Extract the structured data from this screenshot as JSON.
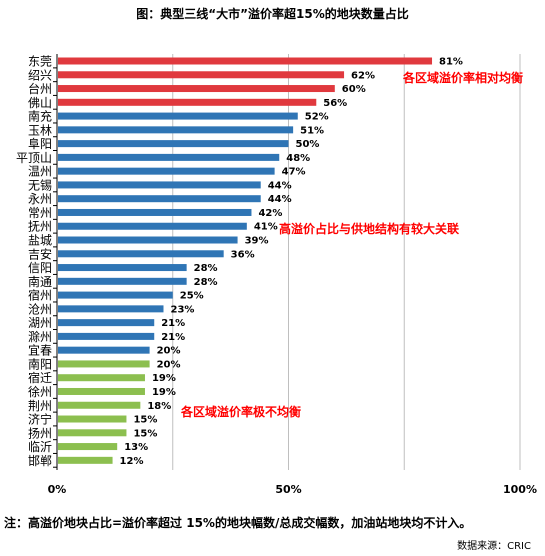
{
  "chart_data": {
    "type": "bar",
    "orientation": "horizontal",
    "title": "图：典型三线“大市”溢价率超15%的地块数量占比",
    "categories": [
      "东莞",
      "绍兴",
      "台州",
      "佛山",
      "南充",
      "玉林",
      "阜阳",
      "平顶山",
      "温州",
      "无锡",
      "永州",
      "常州",
      "抚州",
      "盐城",
      "吉安",
      "信阳",
      "南通",
      "宿州",
      "沧州",
      "湖州",
      "滁州",
      "宜春",
      "南阳",
      "宿迁",
      "徐州",
      "荆州",
      "济宁",
      "扬州",
      "临沂",
      "邯郸"
    ],
    "values": [
      81,
      62,
      60,
      56,
      52,
      51,
      50,
      48,
      47,
      44,
      44,
      42,
      41,
      39,
      36,
      28,
      28,
      25,
      23,
      21,
      21,
      20,
      20,
      19,
      19,
      18,
      15,
      15,
      13,
      12
    ],
    "value_labels": [
      "81%",
      "62%",
      "60%",
      "56%",
      "52%",
      "51%",
      "50%",
      "48%",
      "47%",
      "44%",
      "44%",
      "42%",
      "41%",
      "39%",
      "36%",
      "28%",
      "28%",
      "25%",
      "23%",
      "21%",
      "21%",
      "20%",
      "20%",
      "19%",
      "19%",
      "18%",
      "15%",
      "15%",
      "13%",
      "12%"
    ],
    "group": [
      "red",
      "red",
      "red",
      "red",
      "blue",
      "blue",
      "blue",
      "blue",
      "blue",
      "blue",
      "blue",
      "blue",
      "blue",
      "blue",
      "blue",
      "blue",
      "blue",
      "blue",
      "blue",
      "blue",
      "blue",
      "blue",
      "green",
      "green",
      "green",
      "green",
      "green",
      "green",
      "green",
      "green"
    ],
    "colors": {
      "red": "#e0393e",
      "blue": "#2f75b5",
      "green": "#8cbf4f",
      "annotation": "#ff0000",
      "grid": "#bfbfbf"
    },
    "xlim": [
      0,
      100
    ],
    "x_ticks": [
      0,
      50,
      100
    ],
    "x_tick_labels": [
      "0%",
      "50%",
      "100%"
    ],
    "grid": true,
    "annotations": [
      "各区域溢价率相对均衡",
      "高溢价占比与供地结构有较大关联",
      "各区域溢价率极不均衡"
    ]
  },
  "footnote": "注：高溢价地块占比=溢价率超过 15%的地块幅数/总成交幅数，加油站地块均不计入。",
  "source": "数据来源：CRIC"
}
